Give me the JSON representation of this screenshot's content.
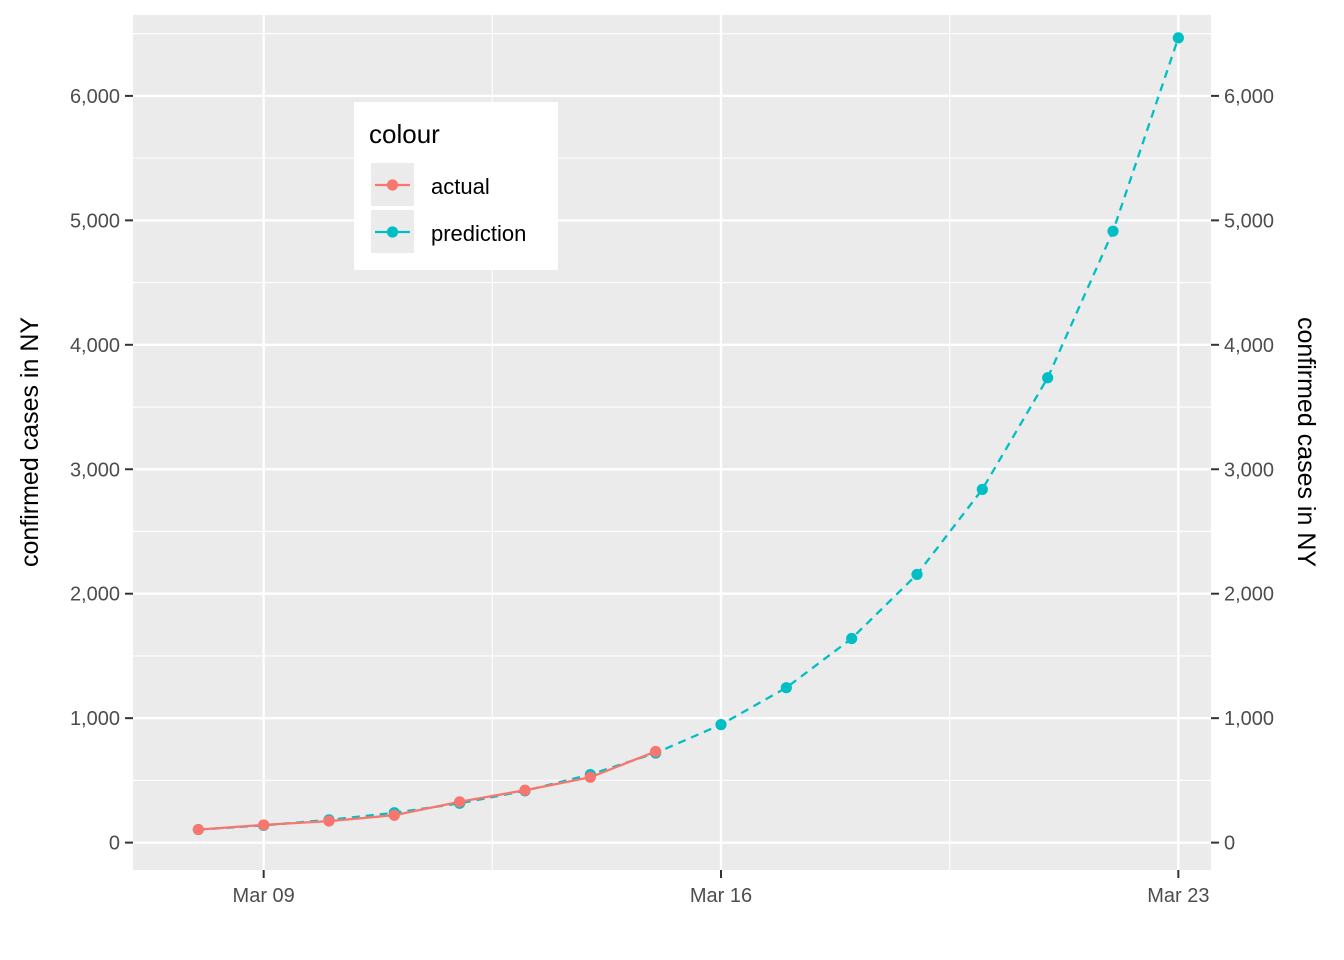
{
  "chart_data": {
    "type": "line",
    "title": "",
    "xlabel": "",
    "ylabel": "confirmed cases in NY",
    "ylabel_secondary": "confirmed cases in NY",
    "x_ticks": [
      "Mar 09",
      "Mar 16",
      "Mar 23"
    ],
    "y_ticks": [
      "0",
      "1,000",
      "2,000",
      "3,000",
      "4,000",
      "5,000",
      "6,000"
    ],
    "ylim": [
      -220,
      6650
    ],
    "grid": true,
    "legend": {
      "title": "colour",
      "placement": "top-left",
      "entries": [
        "actual",
        "prediction"
      ]
    },
    "x": [
      "2020-03-08",
      "2020-03-09",
      "2020-03-10",
      "2020-03-11",
      "2020-03-12",
      "2020-03-13",
      "2020-03-14",
      "2020-03-15",
      "2020-03-16",
      "2020-03-17",
      "2020-03-18",
      "2020-03-19",
      "2020-03-20",
      "2020-03-21",
      "2020-03-22",
      "2020-03-23"
    ],
    "series": [
      {
        "name": "actual",
        "color": "#F8766D",
        "line_style": "solid",
        "x": [
          "2020-03-08",
          "2020-03-09",
          "2020-03-10",
          "2020-03-11",
          "2020-03-12",
          "2020-03-13",
          "2020-03-14",
          "2020-03-15"
        ],
        "values": [
          105,
          142,
          173,
          220,
          328,
          421,
          525,
          732
        ]
      },
      {
        "name": "prediction",
        "color": "#00BFC4",
        "line_style": "dashed",
        "x": [
          "2020-03-08",
          "2020-03-09",
          "2020-03-10",
          "2020-03-11",
          "2020-03-12",
          "2020-03-13",
          "2020-03-14",
          "2020-03-15",
          "2020-03-16",
          "2020-03-17",
          "2020-03-18",
          "2020-03-19",
          "2020-03-20",
          "2020-03-21",
          "2020-03-22",
          "2020-03-23"
        ],
        "values": [
          105,
          138,
          183,
          240,
          316,
          416,
          547,
          720,
          948,
          1245,
          1640,
          2155,
          2838,
          3735,
          4913,
          6466
        ]
      }
    ]
  }
}
